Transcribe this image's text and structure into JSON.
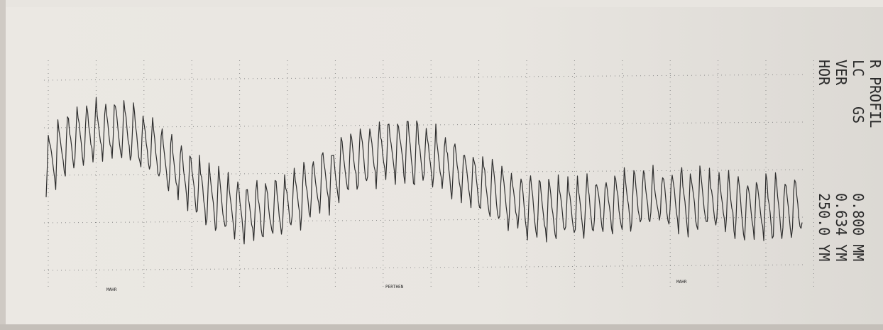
{
  "title": "R PROFIL",
  "rows": [
    {
      "label": "LC",
      "mode": "GS",
      "value": "0.800 MM"
    },
    {
      "label": "VER",
      "value": "0.634 YM"
    },
    {
      "label": "HOR",
      "value": "250.0 YM"
    }
  ],
  "footer": [
    "MAHR",
    "PERTHEN",
    "MAHR"
  ]
}
